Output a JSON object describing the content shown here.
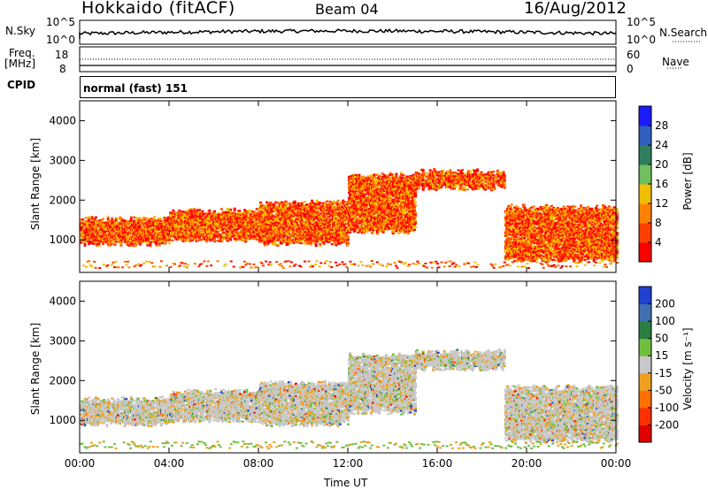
{
  "header": {
    "radar": "Hokkaido (fitACF)",
    "beam": "Beam 04",
    "date": "16/Aug/2012"
  },
  "labels": {
    "nsky": "N.Sky",
    "nsearch": "N.Search",
    "freq": "Freq.",
    "freq_unit": "[MHz]",
    "nave": "Nave",
    "cpid": "CPID",
    "cpid_value": "normal (fast) 151",
    "slant_range": "Slant Range [km]",
    "time_axis": "Time UT",
    "power": "Power [dB]",
    "velocity": "Velocity [m s⁻¹]"
  },
  "noise_panel": {
    "left_ticks": [
      "10^5",
      "10^0"
    ],
    "right_ticks": [
      "10^5",
      "10^0"
    ]
  },
  "freq_panel": {
    "left_ticks": [
      "18",
      "8"
    ],
    "right_ticks": [
      "60",
      "0"
    ]
  },
  "chart_data": [
    {
      "type": "heatmap",
      "name_label": "Power",
      "xlabel": "Time UT",
      "ylabel": "Slant Range [km]",
      "x_ticks": [
        "00:00",
        "04:00",
        "08:00",
        "12:00",
        "16:00",
        "20:00",
        "00:00"
      ],
      "y_ticks": [
        1000,
        2000,
        3000,
        4000
      ],
      "ylim": [
        180,
        4500
      ],
      "xlim_hours": [
        0,
        24
      ],
      "colorbar": {
        "label": "Power [dB]",
        "ticks": [
          "4",
          "8",
          "12",
          "16",
          "20",
          "24",
          "28"
        ],
        "colors": [
          "#1c1cff",
          "#3060c0",
          "#2f7f5f",
          "#70c060",
          "#f0c000",
          "#ff8000",
          "#ff4000",
          "#ff0000"
        ]
      },
      "bands": [
        {
          "t0": 0,
          "t1": 4,
          "r0": 900,
          "r1": 1500
        },
        {
          "t0": 4,
          "t1": 8,
          "r0": 1000,
          "r1": 1700
        },
        {
          "t0": 8,
          "t1": 12,
          "r0": 900,
          "r1": 1900
        },
        {
          "t0": 12,
          "t1": 15,
          "r0": 1200,
          "r1": 2600
        },
        {
          "t0": 15,
          "t1": 19,
          "r0": 2300,
          "r1": 2700
        },
        {
          "t0": 19,
          "t1": 24,
          "r0": 500,
          "r1": 1800
        }
      ]
    },
    {
      "type": "heatmap",
      "name_label": "Velocity",
      "xlabel": "Time UT",
      "ylabel": "Slant Range [km]",
      "x_ticks": [
        "00:00",
        "04:00",
        "08:00",
        "12:00",
        "16:00",
        "20:00",
        "00:00"
      ],
      "y_ticks": [
        1000,
        2000,
        3000,
        4000
      ],
      "ylim": [
        180,
        4500
      ],
      "xlim_hours": [
        0,
        24
      ],
      "colorbar": {
        "label": "Velocity [m s⁻¹]",
        "ticks": [
          "200",
          "100",
          "50",
          "15",
          "-15",
          "-50",
          "-100",
          "-200"
        ],
        "colors": [
          "#2040d0",
          "#4070b0",
          "#2a7f40",
          "#70c040",
          "#c8c8c8",
          "#f0a020",
          "#ff7000",
          "#ff3000",
          "#e00000"
        ]
      },
      "bands": [
        {
          "t0": 0,
          "t1": 4,
          "r0": 900,
          "r1": 1500
        },
        {
          "t0": 4,
          "t1": 8,
          "r0": 1000,
          "r1": 1700
        },
        {
          "t0": 8,
          "t1": 12,
          "r0": 900,
          "r1": 1900
        },
        {
          "t0": 12,
          "t1": 15,
          "r0": 1200,
          "r1": 2600
        },
        {
          "t0": 15,
          "t1": 19,
          "r0": 2300,
          "r1": 2700
        },
        {
          "t0": 19,
          "t1": 24,
          "r0": 500,
          "r1": 1800
        }
      ]
    }
  ]
}
